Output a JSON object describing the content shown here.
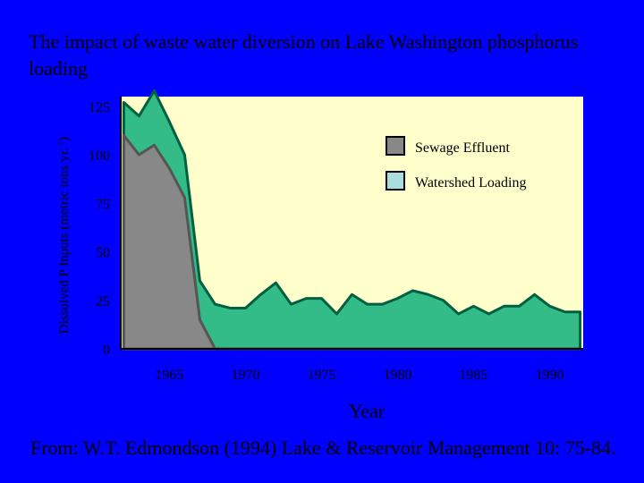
{
  "slide": {
    "title": "The impact of waste water diversion on Lake Washington phosphorus loading",
    "footer": "From: W.T. Edmondson (1994) Lake & Reservoir Management 10: 75-84."
  },
  "chart_data": {
    "type": "area",
    "title": "",
    "xlabel": "Year",
    "ylabel": "Dissolved P Inputs (metric tons yr.",
    "ylabel_sup": "-1",
    "ylabel_suffix": ")",
    "xlim": [
      1961.8,
      1992.2
    ],
    "ylim": [
      0,
      130
    ],
    "x_ticks": [
      1965,
      1970,
      1975,
      1980,
      1985,
      1990
    ],
    "y_ticks": [
      0,
      25,
      50,
      75,
      100,
      125
    ],
    "grid": false,
    "legend_position": "top-right",
    "plot_background": "#ffffcc",
    "series": [
      {
        "name": "Watershed Loading",
        "color": "#33bb88",
        "stroke": "#006040",
        "x": [
          1962,
          1963,
          1964,
          1965,
          1966,
          1967,
          1968,
          1969,
          1970,
          1971,
          1972,
          1973,
          1974,
          1975,
          1976,
          1977,
          1978,
          1979,
          1980,
          1981,
          1982,
          1983,
          1984,
          1985,
          1986,
          1987,
          1988,
          1989,
          1990,
          1991,
          1992
        ],
        "y": [
          127,
          120,
          133,
          117,
          100,
          35,
          23,
          21,
          21,
          28,
          34,
          23,
          26,
          26,
          18,
          28,
          23,
          23,
          26,
          30,
          28,
          25,
          18,
          22,
          18,
          22,
          22,
          28,
          22,
          19,
          19
        ]
      },
      {
        "name": "Sewage Effluent",
        "color": "#888888",
        "stroke": "#555555",
        "x": [
          1962,
          1963,
          1964,
          1965,
          1966,
          1967,
          1968
        ],
        "y": [
          110,
          100,
          105,
          93,
          78,
          15,
          0
        ]
      }
    ]
  }
}
